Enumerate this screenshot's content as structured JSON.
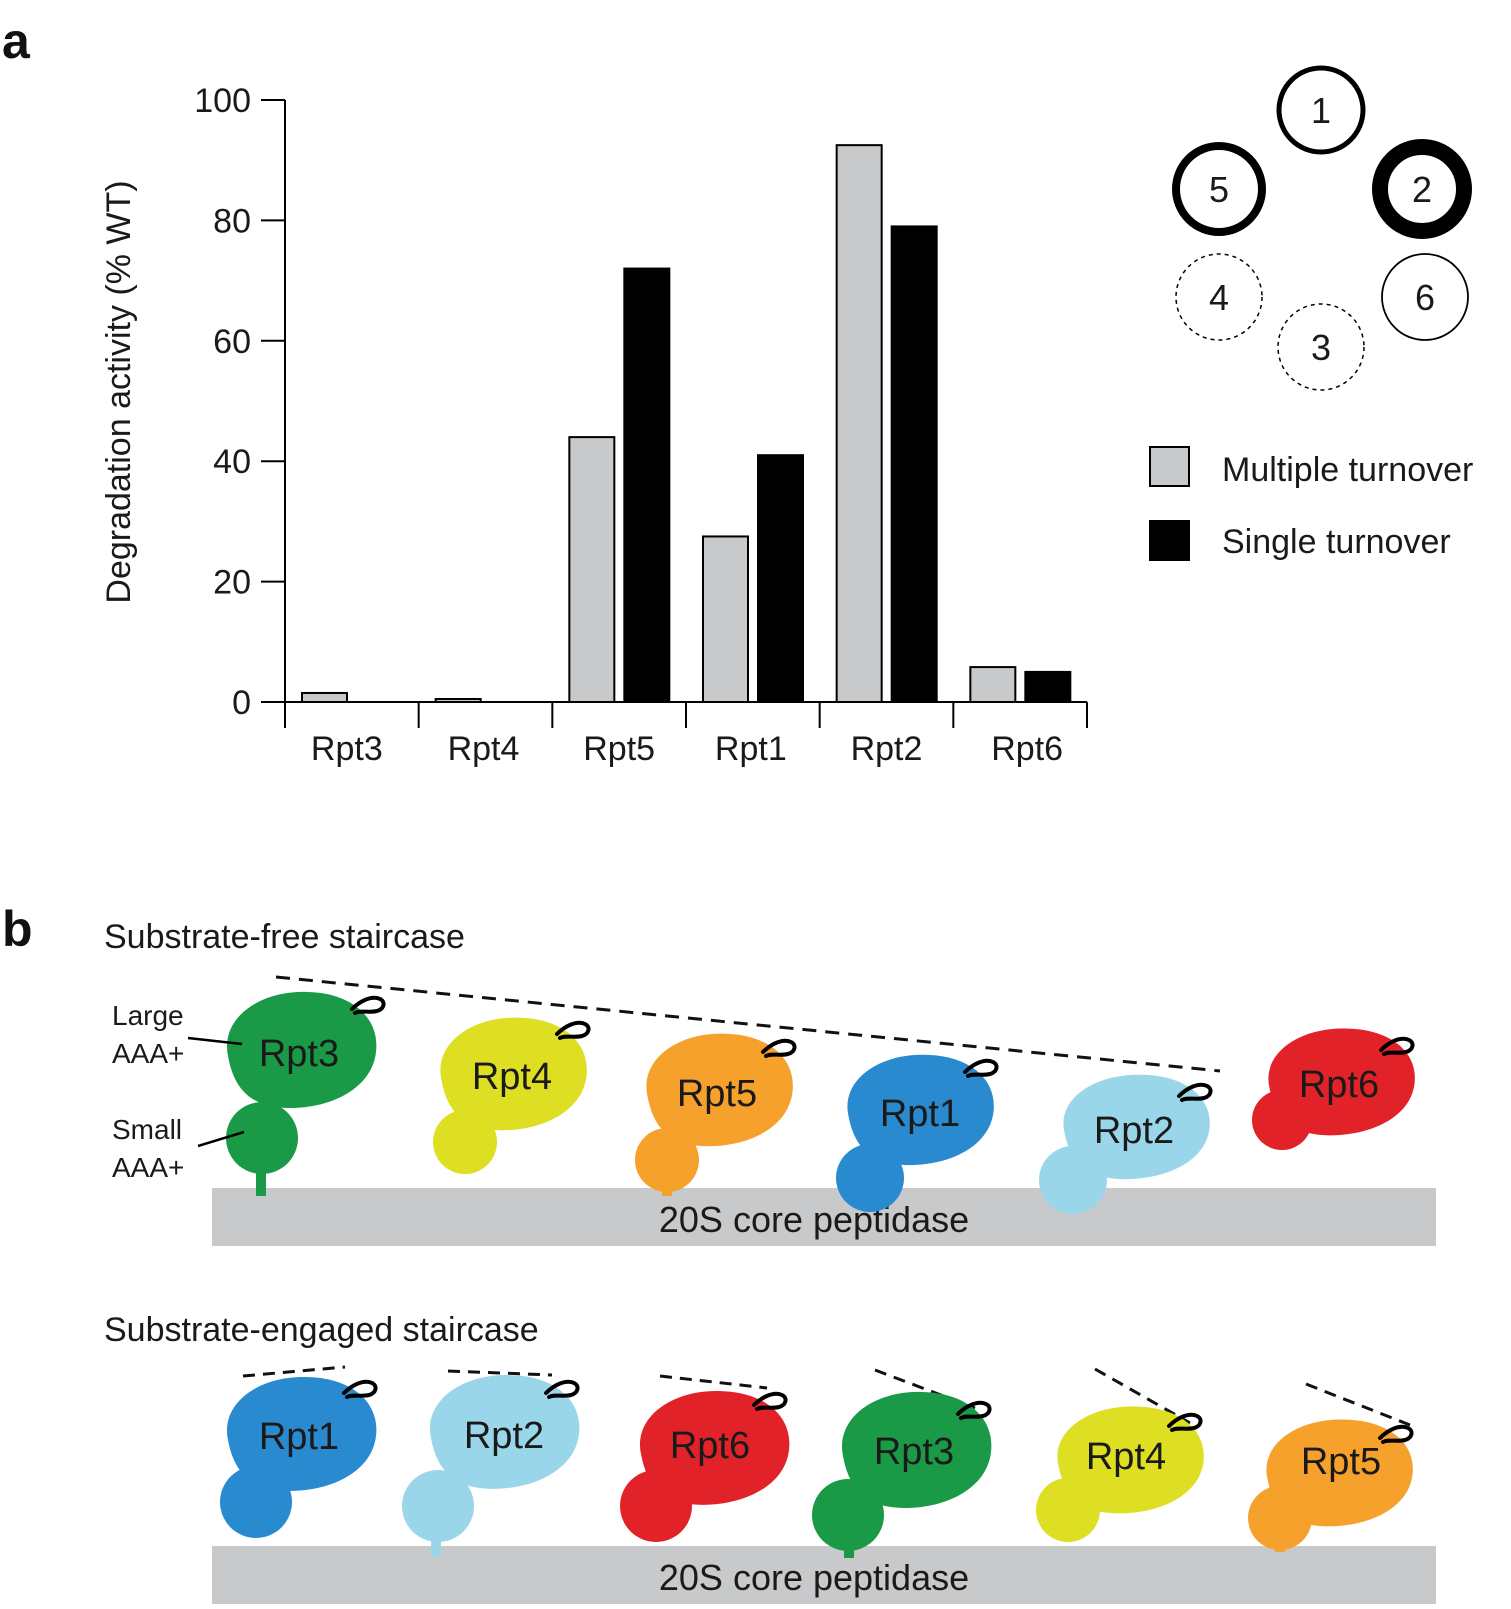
{
  "panel_a": {
    "label": "a",
    "ring": [
      {
        "label": "1",
        "style": "thick-outline"
      },
      {
        "label": "5",
        "style": "thicker-outline"
      },
      {
        "label": "2",
        "style": "very-thick-outline"
      },
      {
        "label": "4",
        "style": "dashed"
      },
      {
        "label": "6",
        "style": "thin-outline"
      },
      {
        "label": "3",
        "style": "dashed"
      }
    ]
  },
  "chart_data": {
    "type": "bar",
    "ylabel": "Degradation activity (% WT)",
    "xlabel": "",
    "ylim": [
      0,
      100
    ],
    "yticks": [
      0,
      20,
      40,
      60,
      80,
      100
    ],
    "categories": [
      "Rpt3",
      "Rpt4",
      "Rpt5",
      "Rpt1",
      "Rpt2",
      "Rpt6"
    ],
    "series": [
      {
        "name": "Multiple turnover",
        "color": "#c8c9cb",
        "values": [
          1.5,
          0.5,
          44,
          27.5,
          92.5,
          5.8
        ]
      },
      {
        "name": "Single turnover",
        "color": "#000000",
        "values": [
          0,
          0,
          72,
          41,
          79,
          5
        ]
      }
    ],
    "legend_position": "right"
  },
  "panel_b": {
    "label": "b",
    "core_label": "20S core peptidase",
    "annotations": {
      "large": [
        "Large",
        "AAA+"
      ],
      "small": [
        "Small",
        "AAA+"
      ]
    },
    "colors": {
      "Rpt1": "#2a8ad0",
      "Rpt2": "#9ad6ea",
      "Rpt3": "#1a9a46",
      "Rpt4": "#dede22",
      "Rpt5": "#f6a12b",
      "Rpt6": "#e12229"
    },
    "staircases": [
      {
        "title": "Substrate-free staircase",
        "subunits": [
          "Rpt3",
          "Rpt4",
          "Rpt5",
          "Rpt1",
          "Rpt2",
          "Rpt6"
        ]
      },
      {
        "title": "Substrate-engaged staircase",
        "subunits": [
          "Rpt1",
          "Rpt2",
          "Rpt6",
          "Rpt3",
          "Rpt4",
          "Rpt5"
        ]
      }
    ]
  }
}
